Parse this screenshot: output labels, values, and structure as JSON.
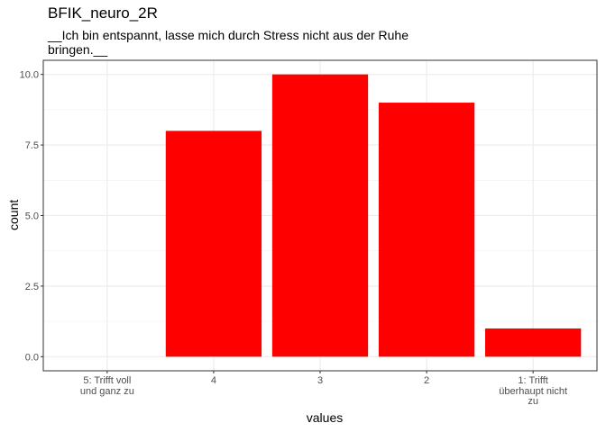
{
  "chart_data": {
    "type": "bar",
    "title": "BFIK_neuro_2R",
    "subtitle": "__Ich bin entspannt, lasse mich durch Stress nicht aus der Ruhe bringen.__",
    "xlabel": "values",
    "ylabel": "count",
    "categories": [
      "5: Trifft voll und ganz zu",
      "4",
      "3",
      "2",
      "1: Trifft überhaupt nicht zu"
    ],
    "category_lines": [
      [
        "5: Trifft voll",
        "und ganz zu"
      ],
      [
        "4"
      ],
      [
        "3"
      ],
      [
        "2"
      ],
      [
        "1: Trifft",
        "überhaupt nicht",
        "zu"
      ]
    ],
    "values": [
      0,
      8,
      10,
      9,
      1
    ],
    "ylim": [
      -0.5,
      10.5
    ],
    "yticks": [
      0,
      2.5,
      5,
      7.5,
      10
    ],
    "ytick_labels": [
      "0.0",
      "2.5",
      "5.0",
      "7.5",
      "10.0"
    ],
    "bar_color": "#FF0000",
    "grid": true,
    "legend": "none"
  }
}
